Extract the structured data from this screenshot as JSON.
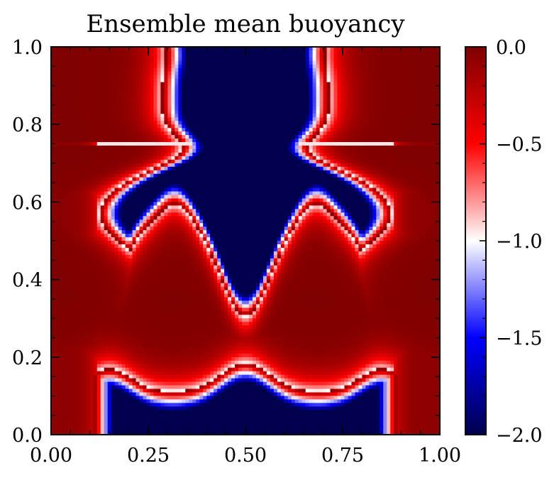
{
  "chart_data": {
    "type": "heatmap",
    "title": "Ensemble mean buoyancy",
    "xlabel": "",
    "ylabel": "",
    "xlim": [
      0.0,
      1.0
    ],
    "ylim": [
      0.0,
      1.0
    ],
    "x_ticks": [
      0.0,
      0.25,
      0.5,
      0.75,
      1.0
    ],
    "x_tick_labels": [
      "0.00",
      "0.25",
      "0.50",
      "0.75",
      "1.00"
    ],
    "y_ticks": [
      0.0,
      0.2,
      0.4,
      0.6,
      0.8,
      1.0
    ],
    "y_tick_labels": [
      "0.0",
      "0.2",
      "0.4",
      "0.6",
      "0.8",
      "1.0"
    ],
    "colorbar": {
      "range": [
        -2.0,
        0.0
      ],
      "ticks": [
        0.0,
        -0.5,
        -1.0,
        -1.5,
        -2.0
      ],
      "tick_labels": [
        "0.0",
        "−0.5",
        "−1.0",
        "−1.5",
        "−2.0"
      ],
      "colormap": "seismic",
      "colors": [
        "#00004c",
        "#0000ff",
        "#ffffff",
        "#ff0000",
        "#7f0000"
      ]
    },
    "grid": false,
    "description_of_field": "Blue (about -2.0) in upper-central plume region and lower band; red near 0.0 around edges and middle band near y=0.25; thin horizontal filament near y=0.75 at left and right edges."
  }
}
